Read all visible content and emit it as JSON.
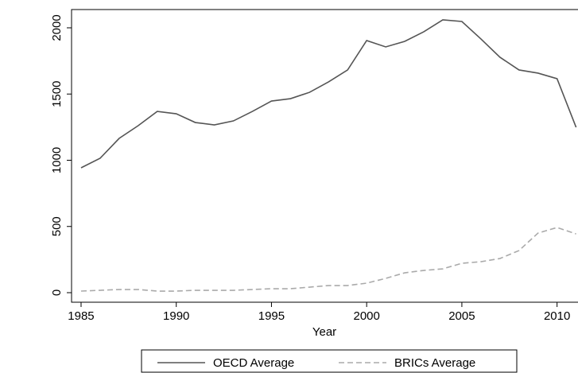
{
  "chart_data": {
    "type": "line",
    "x": [
      1985,
      1986,
      1987,
      1988,
      1989,
      1990,
      1991,
      1992,
      1993,
      1994,
      1995,
      1996,
      1997,
      1998,
      1999,
      2000,
      2001,
      2002,
      2003,
      2004,
      2005,
      2006,
      2007,
      2008,
      2009,
      2010,
      2011
    ],
    "series": [
      {
        "name": "OECD Average",
        "color": "#555555",
        "dash": false,
        "values": [
          943,
          1015,
          1165,
          1261,
          1369,
          1351,
          1285,
          1267,
          1297,
          1369,
          1447,
          1465,
          1513,
          1592,
          1682,
          1904,
          1856,
          1898,
          1970,
          2060,
          2048,
          1916,
          1778,
          1682,
          1658,
          1616,
          1249
        ]
      },
      {
        "name": "BRICs Average",
        "color": "#aaaaaa",
        "dash": true,
        "values": [
          12,
          18,
          24,
          24,
          12,
          12,
          18,
          18,
          18,
          24,
          30,
          30,
          42,
          54,
          54,
          72,
          108,
          150,
          168,
          180,
          222,
          234,
          258,
          318,
          450,
          492,
          444
        ]
      }
    ],
    "xlabel": "Year",
    "xlim": [
      1984.5,
      2011.1
    ],
    "xticks": [
      1985,
      1990,
      1995,
      2000,
      2005,
      2010
    ],
    "ylim": [
      -72,
      2138
    ],
    "yticks": [
      0,
      500,
      1000,
      1500,
      2000
    ],
    "legend": "bottom"
  }
}
